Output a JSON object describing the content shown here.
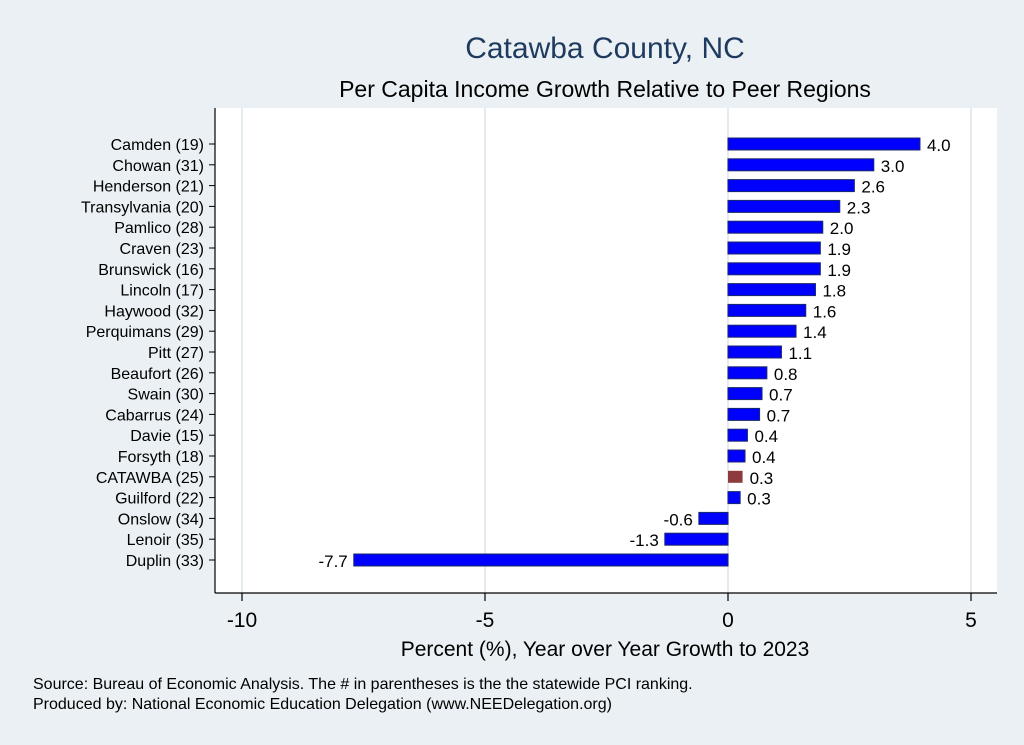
{
  "chart_data": {
    "type": "bar",
    "orientation": "horizontal",
    "title": "Catawba County, NC",
    "subtitle": "Per Capita Income Growth Relative to Peer Regions",
    "xlabel": "Percent (%), Year over Year Growth to 2023",
    "ylabel": "",
    "xlim": [
      -10.5,
      5.5
    ],
    "xticks": [
      -10,
      -5,
      0,
      5
    ],
    "xtick_labels": [
      "-10",
      "-5",
      "0",
      "5"
    ],
    "grid": true,
    "categories": [
      "Camden (19)",
      "Chowan (31)",
      "Henderson (21)",
      "Transylvania (20)",
      "Pamlico (28)",
      "Craven (23)",
      "Brunswick (16)",
      "Lincoln (17)",
      "Haywood (32)",
      "Perquimans (29)",
      "Pitt (27)",
      "Beaufort (26)",
      "Swain (30)",
      "Cabarrus (24)",
      "Davie (15)",
      "Forsyth (18)",
      "CATAWBA (25)",
      "Guilford (22)",
      "Onslow (34)",
      "Lenoir (35)",
      "Duplin (33)"
    ],
    "values": [
      3.95,
      3.0,
      2.6,
      2.3,
      1.95,
      1.9,
      1.9,
      1.8,
      1.6,
      1.4,
      1.1,
      0.8,
      0.7,
      0.65,
      0.4,
      0.35,
      0.3,
      0.25,
      -0.6,
      -1.3,
      -7.7
    ],
    "value_labels": [
      "4.0",
      "3.0",
      "2.6",
      "2.3",
      "2.0",
      "1.9",
      "1.9",
      "1.8",
      "1.6",
      "1.4",
      "1.1",
      "0.8",
      "0.7",
      "0.7",
      "0.4",
      "0.4",
      "0.3",
      "0.3",
      "-0.6",
      "-1.3",
      "-7.7"
    ],
    "highlight_index": 16,
    "colors": {
      "bar": "#0000ff",
      "highlight": "#8e3b3f",
      "bar_edge": "#1a2a6c",
      "title": "#1e3a5f"
    }
  },
  "footer": {
    "source": "Source: Bureau of Economic Analysis. The # in parentheses is the the statewide PCI ranking.",
    "produced": "Produced by: National Economic Education Delegation (www.NEEDelegation.org)"
  }
}
